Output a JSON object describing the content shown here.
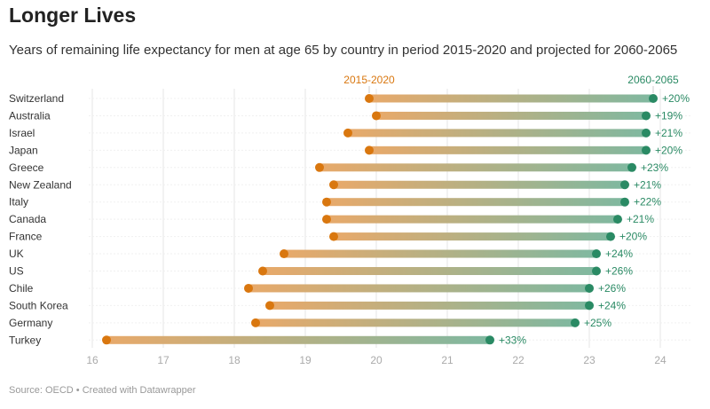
{
  "chart_data": {
    "type": "dumbbell",
    "title": "Longer Lives",
    "subtitle": "Years of remaining life expectancy for men at age 65 by country in period 2015-2020 and projected for 2060-2065",
    "source": "Source: OECD • Created with Datawrapper",
    "xlim": [
      16,
      24
    ],
    "xticks": [
      16,
      17,
      18,
      19,
      20,
      21,
      22,
      23,
      24
    ],
    "grid": true,
    "series": [
      {
        "name": "2015-2020",
        "color": "#d9770f"
      },
      {
        "name": "2060-2065",
        "color": "#2a8a64"
      }
    ],
    "categories": [
      "Switzerland",
      "Australia",
      "Israel",
      "Japan",
      "Greece",
      "New Zealand",
      "Italy",
      "Canada",
      "France",
      "UK",
      "US",
      "Chile",
      "South Korea",
      "Germany",
      "Turkey"
    ],
    "start": [
      19.9,
      20.0,
      19.6,
      19.9,
      19.2,
      19.4,
      19.3,
      19.3,
      19.4,
      18.7,
      18.4,
      18.2,
      18.5,
      18.3,
      16.2
    ],
    "end": [
      23.9,
      23.8,
      23.8,
      23.8,
      23.6,
      23.5,
      23.5,
      23.4,
      23.3,
      23.1,
      23.1,
      23.0,
      23.0,
      22.8,
      21.6
    ],
    "labels": [
      "+20%",
      "+19%",
      "+21%",
      "+20%",
      "+23%",
      "+21%",
      "+22%",
      "+21%",
      "+20%",
      "+24%",
      "+26%",
      "+26%",
      "+24%",
      "+25%",
      "+33%"
    ]
  }
}
